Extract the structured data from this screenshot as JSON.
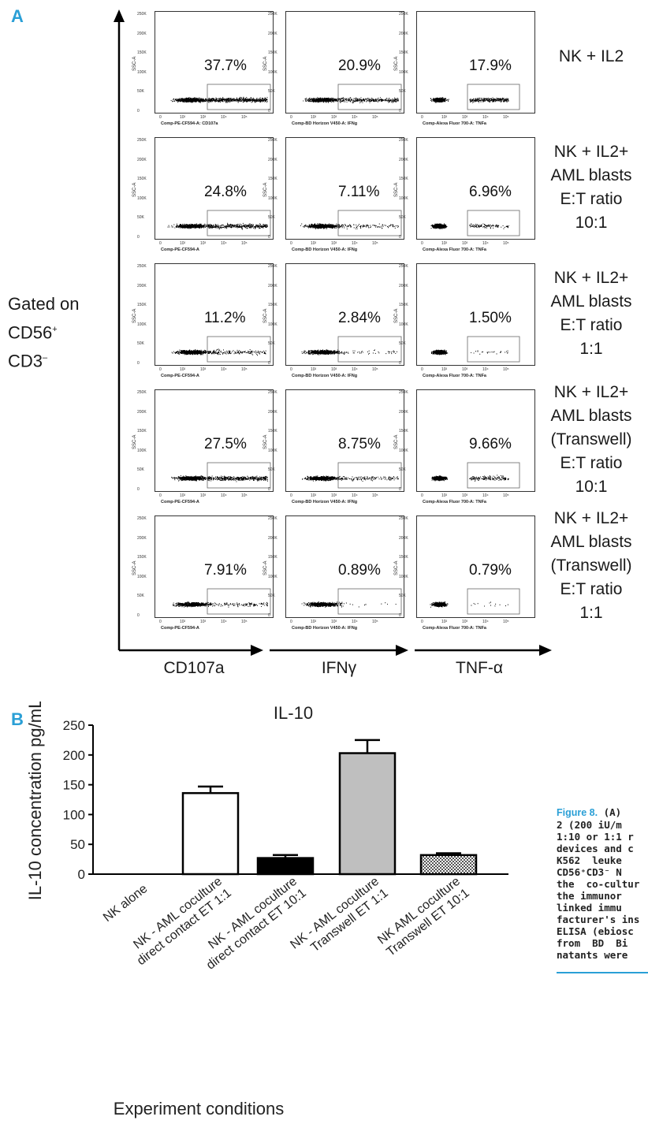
{
  "panel_a": {
    "letter": "A",
    "gated_line1": "Gated on",
    "gated_line2": "CD56",
    "gated_line2_sup": "+",
    "gated_line3": "CD3",
    "gated_line3_sup": "–",
    "axis_labels": [
      "CD107a",
      "IFNγ",
      "TNF-α"
    ],
    "y_ticks": [
      "250K",
      "200K",
      "150K",
      "100K",
      "50K",
      "0"
    ],
    "y_label": "SSC-A",
    "x_ticks": [
      "0",
      "10²",
      "10³",
      "10⁴",
      "10⁵"
    ],
    "rows": [
      {
        "condition": [
          "NK + IL2"
        ],
        "x_labels": [
          "Comp-PE-CF594-A: CD107a",
          "Comp-BD Horizon V450-A: IFNg",
          "Comp-Alexa Fluor 700-A: TNFa"
        ],
        "percents": [
          "37.7%",
          "20.9%",
          "17.9%"
        ],
        "density": [
          0.377,
          0.209,
          0.179
        ]
      },
      {
        "condition": [
          "NK + IL2+",
          "AML blasts",
          "E:T ratio",
          "10:1"
        ],
        "x_labels": [
          "Comp-PE-CF594-A",
          "Comp-BD Horizon V450-A: IFNg",
          "Comp-Alexa Fluor 700-A: TNFa"
        ],
        "percents": [
          "24.8%",
          "7.11%",
          "6.96%"
        ],
        "density": [
          0.248,
          0.0711,
          0.0696
        ]
      },
      {
        "condition": [
          "NK + IL2+",
          "AML blasts",
          "E:T ratio",
          "1:1"
        ],
        "x_labels": [
          "Comp-PE-CF594-A",
          "Comp-BD Horizon V450-A: IFNg",
          "Comp-Alexa Fluor 700-A: TNFa"
        ],
        "percents": [
          "11.2%",
          "2.84%",
          "1.50%"
        ],
        "density": [
          0.112,
          0.0284,
          0.015
        ]
      },
      {
        "condition": [
          "NK + IL2+",
          "AML blasts",
          "(Transwell)",
          "E:T ratio",
          "10:1"
        ],
        "x_labels": [
          "Comp-PE-CF594-A",
          "Comp-BD Horizon V450-A: IFNg",
          "Comp-Alexa Fluor 700-A: TNFa"
        ],
        "percents": [
          "27.5%",
          "8.75%",
          "9.66%"
        ],
        "density": [
          0.275,
          0.0875,
          0.0966
        ]
      },
      {
        "condition": [
          "NK + IL2+",
          "AML blasts",
          "(Transwell)",
          "E:T ratio",
          "1:1"
        ],
        "x_labels": [
          "Comp-PE-CF594-A",
          "Comp-BD Horizon V450-A: IFNg",
          "Comp-Alexa Fluor 700-A: TNFa"
        ],
        "percents": [
          "7.91%",
          "0.89%",
          "0.79%"
        ],
        "density": [
          0.0791,
          0.0089,
          0.0079
        ]
      }
    ]
  },
  "panel_b": {
    "letter": "B"
  },
  "chart_data": {
    "type": "bar",
    "title": "IL-10",
    "xlabel": "Experiment conditions",
    "ylabel": "IL-10 concentration pg/mL",
    "ylim": [
      0,
      250
    ],
    "yticks": [
      0,
      50,
      100,
      150,
      200,
      250
    ],
    "categories": [
      "NK alone",
      "NK - AML coculture direct contact ET 1:1",
      "NK - AML coculture direct contact ET 10:1",
      "NK - AML coculture Transwell ET 1:1",
      "NK AML coculture Transwell ET 10:1"
    ],
    "category_lines": [
      [
        "NK alone"
      ],
      [
        "NK - AML coculture",
        "direct contact ET 1:1"
      ],
      [
        "NK - AML coculture",
        "direct contact ET 10:1"
      ],
      [
        "NK - AML coculture",
        "Transwell ET 1:1"
      ],
      [
        "NK AML coculture",
        "Transwell ET 10:1"
      ]
    ],
    "values": [
      0,
      136,
      27,
      203,
      32
    ],
    "errors": [
      0,
      11,
      5,
      22,
      3
    ],
    "fills": [
      "none",
      "white",
      "black",
      "gray",
      "checker"
    ],
    "colors": {
      "black": "#000000",
      "gray": "#bfbfbf",
      "white": "#ffffff"
    }
  },
  "caption": {
    "label": "Figure 8.",
    "lines": [
      " (A)",
      "2 (200 iU/m",
      "1:10 or 1:1 r",
      "devices and c",
      "K562  leuke",
      "CD56⁺CD3⁻ N",
      "the  co-cultur",
      "the immunor",
      "linked immu",
      "facturer's ins",
      "ELISA (ebiosc",
      "from  BD  Bi",
      "natants were"
    ]
  }
}
